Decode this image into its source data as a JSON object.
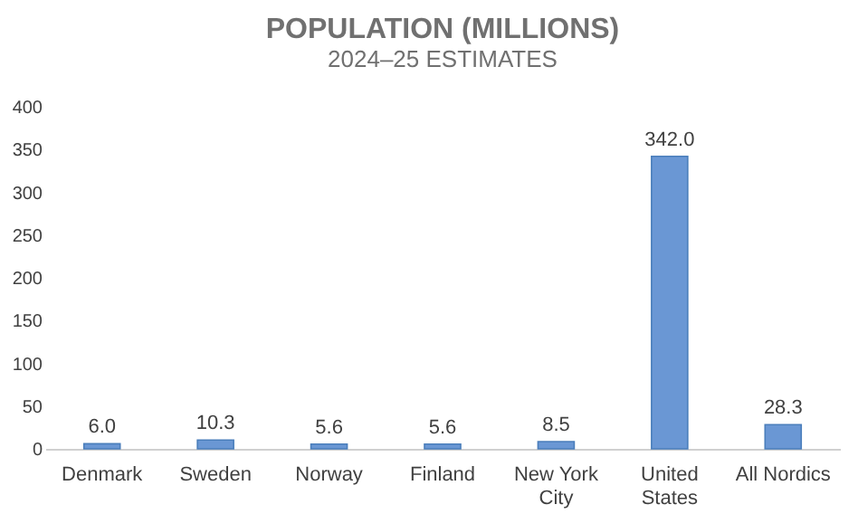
{
  "chart_data": {
    "type": "bar",
    "title": "POPULATION (MILLIONS)",
    "subtitle": "2024–25 ESTIMATES",
    "categories": [
      "Denmark",
      "Sweden",
      "Norway",
      "Finland",
      "New York City",
      "United States",
      "All Nordics"
    ],
    "values": [
      6.0,
      10.3,
      5.6,
      5.6,
      8.5,
      342.0,
      28.3
    ],
    "color": "#6a97d4",
    "ylim": [
      0,
      400
    ],
    "yticks": [
      0,
      50,
      100,
      150,
      200,
      250,
      300,
      350,
      400
    ],
    "grid": false,
    "value_labels": [
      "6.0",
      "10.3",
      "5.6",
      "5.6",
      "8.5",
      "342.0",
      "28.3"
    ]
  }
}
